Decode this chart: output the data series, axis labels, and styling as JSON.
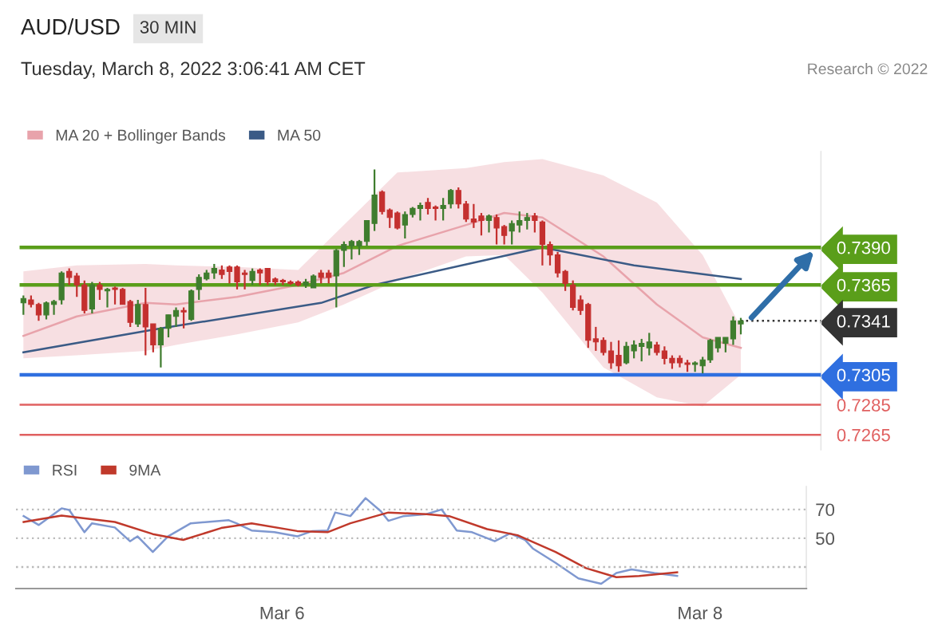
{
  "chart_data": [
    {
      "type": "candlestick",
      "title": "AUD/USD",
      "subtitle": "Tuesday, March 8, 2022 3:06:41 AM CET",
      "annotations": [
        "30 MIN",
        "Research © 2022"
      ],
      "categories": [
        null,
        null,
        null,
        null,
        null,
        null,
        null,
        null,
        null,
        null,
        null,
        null,
        null,
        null,
        null,
        null,
        null,
        null,
        null,
        null,
        null,
        null,
        null,
        null,
        null,
        null,
        null,
        null,
        null,
        null,
        null,
        null,
        null,
        null,
        null,
        null,
        null,
        null,
        null,
        null,
        null,
        null,
        null,
        null,
        null,
        null,
        null,
        null,
        null,
        null,
        null,
        null,
        null,
        null,
        null,
        null,
        null,
        null,
        null,
        null,
        null,
        null,
        null,
        null,
        null,
        null,
        null,
        null,
        null,
        null,
        null,
        null,
        null,
        null,
        null,
        null,
        null,
        null,
        null,
        null,
        null,
        null,
        null,
        null,
        null,
        null,
        null,
        null,
        null,
        null,
        null,
        null,
        null,
        null,
        null,
        null,
        null,
        null,
        null,
        null,
        null,
        null,
        null,
        null,
        null
      ],
      "ohlc": [
        [
          0.7353,
          0.7358,
          0.7345,
          0.7356
        ],
        [
          0.7355,
          0.7358,
          0.735,
          0.7352
        ],
        [
          0.7352,
          0.7353,
          0.7341,
          0.7345
        ],
        [
          0.7345,
          0.7354,
          0.7342,
          0.7353
        ],
        [
          0.7352,
          0.7355,
          0.7345,
          0.7354
        ],
        [
          0.7355,
          0.7374,
          0.7352,
          0.7373
        ],
        [
          0.7374,
          0.7376,
          0.7365,
          0.737
        ],
        [
          0.7371,
          0.7373,
          0.7357,
          0.7365
        ],
        [
          0.7365,
          0.7368,
          0.7346,
          0.7348
        ],
        [
          0.7349,
          0.7367,
          0.7346,
          0.7365
        ],
        [
          0.7365,
          0.7367,
          0.7355,
          0.7362
        ],
        [
          0.7361,
          0.7363,
          0.735,
          0.7362
        ],
        [
          0.7363,
          0.7364,
          0.7352,
          0.7362
        ],
        [
          0.7362,
          0.7363,
          0.7352,
          0.7352
        ],
        [
          0.7354,
          0.7355,
          0.7337,
          0.734
        ],
        [
          0.7339,
          0.7355,
          0.7337,
          0.7352
        ],
        [
          0.7352,
          0.7363,
          0.7318,
          0.7337
        ],
        [
          0.7339,
          0.7339,
          0.732,
          0.7325
        ],
        [
          0.7325,
          0.7337,
          0.731,
          0.7336
        ],
        [
          0.7336,
          0.7345,
          0.733,
          0.7345
        ],
        [
          0.7344,
          0.735,
          0.7337,
          0.7348
        ],
        [
          0.7348,
          0.735,
          0.7336,
          0.7347
        ],
        [
          0.7342,
          0.7362,
          0.7341,
          0.7361
        ],
        [
          0.7362,
          0.7372,
          0.7355,
          0.737
        ],
        [
          0.7369,
          0.7375,
          0.7368,
          0.7373
        ],
        [
          0.7373,
          0.7379,
          0.7369,
          0.7376
        ],
        [
          0.7375,
          0.7378,
          0.7369,
          0.7372
        ],
        [
          0.7377,
          0.7378,
          0.7366,
          0.7374
        ],
        [
          0.7377,
          0.7378,
          0.7362,
          0.7367
        ],
        [
          0.7373,
          0.7375,
          0.7362,
          0.7372
        ],
        [
          0.7368,
          0.7376,
          0.7365,
          0.7374
        ],
        [
          0.7375,
          0.7376,
          0.7365,
          0.7373
        ],
        [
          0.7376,
          0.7376,
          0.7365,
          0.7367
        ],
        [
          0.7369,
          0.737,
          0.7365,
          0.7367
        ],
        [
          0.7368,
          0.7369,
          0.7365,
          0.7367
        ],
        [
          0.7367,
          0.7368,
          0.7365,
          0.7366
        ],
        [
          0.7367,
          0.7368,
          0.7364,
          0.7365
        ],
        [
          0.7365,
          0.7369,
          0.7363,
          0.7367
        ],
        [
          0.7363,
          0.7372,
          0.7363,
          0.7371
        ],
        [
          0.7373,
          0.7375,
          0.7366,
          0.737
        ],
        [
          0.7373,
          0.7375,
          0.7366,
          0.737
        ],
        [
          0.7371,
          0.7389,
          0.735,
          0.7388
        ],
        [
          0.7388,
          0.7394,
          0.7377,
          0.7392
        ],
        [
          0.7391,
          0.7395,
          0.7382,
          0.7394
        ],
        [
          0.7391,
          0.7395,
          0.7385,
          0.7394
        ],
        [
          0.7394,
          0.7408,
          0.7391,
          0.7408
        ],
        [
          0.7406,
          0.7442,
          0.7401,
          0.7425
        ],
        [
          0.7427,
          0.7428,
          0.7412,
          0.7414
        ],
        [
          0.7415,
          0.7416,
          0.7403,
          0.741
        ],
        [
          0.7413,
          0.7414,
          0.7402,
          0.7403
        ],
        [
          0.7405,
          0.7414,
          0.7396,
          0.7412
        ],
        [
          0.7412,
          0.7417,
          0.741,
          0.7416
        ],
        [
          0.7416,
          0.742,
          0.7408,
          0.7418
        ],
        [
          0.742,
          0.7423,
          0.7412,
          0.7416
        ],
        [
          0.7417,
          0.7418,
          0.7408,
          0.7416
        ],
        [
          0.7416,
          0.7423,
          0.7408,
          0.7418
        ],
        [
          0.7419,
          0.7429,
          0.7416,
          0.7428
        ],
        [
          0.7428,
          0.743,
          0.7416,
          0.7419
        ],
        [
          0.7419,
          0.7421,
          0.7407,
          0.7409
        ],
        [
          0.7409,
          0.7419,
          0.7403,
          0.7407
        ],
        [
          0.7411,
          0.7413,
          0.7398,
          0.7408
        ],
        [
          0.7408,
          0.7412,
          0.74,
          0.7411
        ],
        [
          0.741,
          0.7412,
          0.7392,
          0.7403
        ],
        [
          0.7404,
          0.7405,
          0.7392,
          0.7398
        ],
        [
          0.7401,
          0.7408,
          0.7392,
          0.7406
        ],
        [
          0.7405,
          0.7414,
          0.74,
          0.7408
        ],
        [
          0.7408,
          0.7413,
          0.7402,
          0.741
        ],
        [
          0.7411,
          0.7413,
          0.74,
          0.7408
        ],
        [
          0.7407,
          0.7408,
          0.7378,
          0.7392
        ],
        [
          0.7392,
          0.7394,
          0.7378,
          0.7385
        ],
        [
          0.7385,
          0.7387,
          0.737,
          0.7373
        ],
        [
          0.7374,
          0.7375,
          0.7361,
          0.7366
        ],
        [
          0.7365,
          0.7368,
          0.7348,
          0.735
        ],
        [
          0.7355,
          0.7358,
          0.7345,
          0.7348
        ],
        [
          0.7352,
          0.7353,
          0.7323,
          0.7328
        ],
        [
          0.7329,
          0.7337,
          0.7321,
          0.7327
        ],
        [
          0.7328,
          0.733,
          0.7318,
          0.732
        ],
        [
          0.7321,
          0.7327,
          0.7309,
          0.7313
        ],
        [
          0.7318,
          0.7328,
          0.7307,
          0.7311
        ],
        [
          0.7313,
          0.7327,
          0.7312,
          0.7324
        ],
        [
          0.7321,
          0.7328,
          0.7316,
          0.7325
        ],
        [
          0.7324,
          0.7329,
          0.7314,
          0.7326
        ],
        [
          0.7323,
          0.7333,
          0.7318,
          0.7327
        ],
        [
          0.7325,
          0.7327,
          0.7318,
          0.732
        ],
        [
          0.7321,
          0.7324,
          0.7312,
          0.7316
        ],
        [
          0.7316,
          0.7318,
          0.7309,
          0.7313
        ],
        [
          0.7316,
          0.7318,
          0.731,
          0.7313
        ],
        [
          0.7313,
          0.7315,
          0.7307,
          0.7312
        ],
        [
          0.7312,
          0.7314,
          0.7307,
          0.7313
        ],
        [
          0.7311,
          0.7317,
          0.7306,
          0.7315
        ],
        [
          0.7315,
          0.7329,
          0.7313,
          0.7328
        ],
        [
          0.7323,
          0.733,
          0.732,
          0.733
        ],
        [
          0.7326,
          0.733,
          0.732,
          0.733
        ],
        [
          0.7329,
          0.7344,
          0.7325,
          0.7341
        ],
        [
          0.7339,
          0.7343,
          0.7332,
          0.7341
        ],
        null,
        null,
        null,
        null,
        null,
        null,
        null,
        null,
        null,
        null
      ],
      "colors": [
        "#3f7d2e",
        "#c4302f",
        "#c4302f",
        "#3f7d2e",
        "#3f7d2e",
        "#3f7d2e",
        "#c4302f",
        "#c4302f",
        "#c4302f",
        "#3f7d2e",
        "#c4302f",
        "#3f7d2e",
        "#c4302f",
        "#c4302f",
        "#c4302f",
        "#3f7d2e",
        "#c4302f",
        "#c4302f",
        "#3f7d2e",
        "#3f7d2e",
        "#3f7d2e",
        "#c4302f",
        "#3f7d2e",
        "#3f7d2e",
        "#3f7d2e",
        "#3f7d2e",
        "#c4302f",
        "#c4302f",
        "#c4302f",
        "#c4302f",
        "#3f7d2e",
        "#c4302f",
        "#c4302f",
        "#c4302f",
        "#c4302f",
        "#c4302f",
        "#c4302f",
        "#3f7d2e",
        "#3f7d2e",
        "#c4302f",
        "#c4302f",
        "#3f7d2e",
        "#3f7d2e",
        "#3f7d2e",
        "#3f7d2e",
        "#3f7d2e",
        "#3f7d2e",
        "#c4302f",
        "#c4302f",
        "#c4302f",
        "#3f7d2e",
        "#3f7d2e",
        "#3f7d2e",
        "#c4302f",
        "#c4302f",
        "#3f7d2e",
        "#3f7d2e",
        "#c4302f",
        "#c4302f",
        "#c4302f",
        "#c4302f",
        "#3f7d2e",
        "#c4302f",
        "#c4302f",
        "#3f7d2e",
        "#3f7d2e",
        "#3f7d2e",
        "#c4302f",
        "#c4302f",
        "#c4302f",
        "#c4302f",
        "#c4302f",
        "#c4302f",
        "#c4302f",
        "#c4302f",
        "#c4302f",
        "#c4302f",
        "#c4302f",
        "#c4302f",
        "#3f7d2e",
        "#3f7d2e",
        "#3f7d2e",
        "#3f7d2e",
        "#c4302f",
        "#c4302f",
        "#c4302f",
        "#c4302f",
        "#c4302f",
        "#3f7d2e",
        "#3f7d2e",
        "#3f7d2e",
        "#3f7d2e",
        "#3f7d2e",
        "#3f7d2e",
        "#3f7d2e",
        null,
        null,
        null,
        null,
        null,
        null,
        null,
        null,
        null,
        null
      ],
      "series": [
        {
          "name": "MA 20 + Bollinger Bands",
          "type": "line",
          "color": "#e8a3ab",
          "values": [
            0.7331,
            null,
            null,
            null,
            null,
            null,
            null,
            0.7344,
            null,
            null,
            null,
            null,
            null,
            null,
            null,
            null,
            0.7353,
            null,
            null,
            null,
            0.7352,
            null,
            null,
            null,
            null,
            null,
            null,
            null,
            0.7357,
            null,
            null,
            null,
            null,
            null,
            null,
            null,
            0.7365,
            null,
            null,
            null,
            null,
            null,
            0.7373,
            null,
            null,
            null,
            null,
            null,
            null,
            0.7391,
            null,
            null,
            null,
            null,
            null,
            null,
            null,
            null,
            0.7405,
            null,
            null,
            null,
            null,
            0.7413,
            null,
            null,
            null,
            null,
            0.741,
            null,
            null,
            null,
            null,
            null,
            null,
            null,
            0.7384,
            null,
            null,
            null,
            null,
            null,
            null,
            0.7352,
            null,
            null,
            null,
            null,
            null,
            0.733,
            null,
            null,
            null,
            null,
            0.7323,
            null,
            null,
            null,
            null,
            null,
            null,
            null,
            null,
            null,
            null
          ],
          "lower": [
            0.7316,
            null,
            null,
            null,
            null,
            null,
            null,
            0.7318,
            null,
            null,
            null,
            null,
            null,
            null,
            null,
            null,
            0.7321,
            null,
            null,
            null,
            0.7325,
            null,
            null,
            null,
            null,
            null,
            null,
            null,
            0.7332,
            null,
            null,
            null,
            null,
            null,
            null,
            null,
            0.734,
            null,
            null,
            null,
            null,
            null,
            0.7352,
            null,
            null,
            null,
            null,
            null,
            null,
            0.7368,
            null,
            null,
            null,
            null,
            null,
            null,
            null,
            null,
            0.7384,
            null,
            null,
            null,
            null,
            0.7385,
            null,
            null,
            null,
            null,
            0.736,
            null,
            null,
            null,
            null,
            null,
            null,
            null,
            0.731,
            null,
            null,
            null,
            null,
            null,
            null,
            0.729,
            null,
            null,
            null,
            null,
            null,
            0.7284,
            null,
            null,
            null,
            null,
            0.7305,
            null,
            null,
            null,
            null,
            null,
            null,
            null,
            null,
            null,
            null
          ],
          "upper": [
            0.7374,
            null,
            null,
            null,
            null,
            null,
            null,
            0.7378,
            null,
            null,
            null,
            null,
            null,
            null,
            null,
            null,
            0.7379,
            null,
            null,
            null,
            0.7378,
            null,
            null,
            null,
            null,
            null,
            null,
            null,
            0.7377,
            null,
            null,
            null,
            null,
            null,
            null,
            null,
            0.7375,
            null,
            null,
            null,
            null,
            null,
            0.7405,
            null,
            null,
            null,
            null,
            null,
            null,
            0.744,
            null,
            null,
            null,
            null,
            null,
            null,
            null,
            null,
            0.7443,
            null,
            null,
            null,
            null,
            0.7447,
            null,
            null,
            null,
            null,
            0.7449,
            null,
            null,
            null,
            null,
            null,
            null,
            null,
            0.7438,
            null,
            null,
            null,
            null,
            null,
            null,
            0.742,
            null,
            null,
            null,
            null,
            null,
            0.7385,
            null,
            null,
            null,
            null,
            0.7337,
            null,
            null,
            null,
            null,
            null,
            null,
            null,
            null,
            null,
            null
          ]
        },
        {
          "name": "MA 50",
          "type": "line",
          "color": "#3b5b86",
          "values": [
            0.732,
            null,
            null,
            null,
            null,
            null,
            null,
            null,
            null,
            null,
            null,
            null,
            null,
            null,
            null,
            null,
            null,
            null,
            0.7336,
            null,
            null,
            null,
            null,
            null,
            null,
            null,
            null,
            null,
            null,
            null,
            null,
            null,
            null,
            null,
            null,
            null,
            null,
            null,
            null,
            0.7353,
            null,
            null,
            null,
            null,
            null,
            null,
            0.7365,
            null,
            null,
            null,
            null,
            null,
            null,
            null,
            null,
            null,
            null,
            null,
            null,
            null,
            0.7381,
            null,
            null,
            null,
            null,
            null,
            null,
            null,
            0.739,
            null,
            null,
            null,
            null,
            null,
            null,
            null,
            null,
            null,
            null,
            null,
            0.7378,
            null,
            null,
            null,
            null,
            null,
            null,
            null,
            null,
            null,
            null,
            null,
            null,
            null,
            0.7369,
            null,
            null,
            null,
            null,
            null,
            null,
            null,
            null,
            null,
            null
          ]
        }
      ],
      "ref_lines": [
        {
          "axis": "y",
          "value": 0.739,
          "color": "#5a9e1a",
          "line_style": "solid"
        },
        {
          "axis": "y",
          "value": 0.7365,
          "color": "#5a9e1a",
          "line_style": "solid"
        },
        {
          "axis": "y",
          "value": 0.7341,
          "color": "#333333",
          "line_style": "dotted"
        },
        {
          "axis": "y",
          "value": 0.7305,
          "color": "#2f6fe0",
          "line_style": "solid"
        },
        {
          "axis": "y",
          "value": 0.7285,
          "color": "#e06060",
          "line_style": "solid"
        },
        {
          "axis": "y",
          "value": 0.7265,
          "color": "#e06060",
          "line_style": "solid"
        }
      ],
      "yticks": [
        {
          "value": 0.739,
          "label": "0.7390"
        },
        {
          "value": 0.7365,
          "label": "0.7365"
        },
        {
          "value": 0.7341,
          "label": "0.7341"
        },
        {
          "value": 0.7305,
          "label": "0.7305"
        },
        {
          "value": 0.7285,
          "label": "0.7285"
        },
        {
          "value": 0.7265,
          "label": "0.7265"
        }
      ],
      "ylim": [
        0.7255,
        0.7454
      ],
      "tick_labels": "y",
      "legend": "top left",
      "grid": false
    },
    {
      "type": "line",
      "categories": [
        null,
        null,
        null,
        null,
        null,
        null,
        null,
        null,
        null,
        null,
        null,
        null,
        null,
        null,
        null,
        null,
        null,
        null,
        null,
        null,
        null,
        null,
        null,
        null,
        null,
        null,
        null,
        null,
        null,
        null,
        null,
        null,
        null,
        null,
        "Mar 6",
        null,
        null,
        null,
        null,
        null,
        null,
        null,
        null,
        null,
        null,
        null,
        null,
        null,
        null,
        null,
        null,
        null,
        null,
        null,
        null,
        null,
        null,
        null,
        null,
        null,
        null,
        null,
        null,
        null,
        null,
        null,
        null,
        null,
        null,
        null,
        null,
        null,
        null,
        null,
        null,
        null,
        null,
        null,
        null,
        null,
        null,
        null,
        null,
        null,
        null,
        null,
        null,
        null,
        null,
        "Mar 8",
        null,
        null,
        null,
        null,
        null
      ],
      "series": [
        {
          "name": "RSI",
          "color": "#7f98d0",
          "values": [
            65.4,
            null,
            59.2,
            null,
            null,
            70.8,
            69.6,
            null,
            54.2,
            60.4,
            null,
            null,
            57.5,
            null,
            47.9,
            51.3,
            null,
            40.4,
            null,
            51.3,
            null,
            null,
            60.4,
            null,
            null,
            null,
            null,
            62.5,
            60.4,
            null,
            55.4,
            null,
            null,
            54.2,
            null,
            null,
            51.3,
            null,
            55.0,
            null,
            55.4,
            67.9,
            null,
            65.4,
            null,
            77.9,
            null,
            68.8,
            62.1,
            null,
            65.4,
            null,
            null,
            66.7,
            null,
            70.0,
            null,
            55.4,
            null,
            54.2,
            null,
            null,
            47.9,
            null,
            53.3,
            null,
            48.8,
            42.9,
            null,
            null,
            32.9,
            null,
            null,
            22.1,
            null,
            19.6,
            18.3,
            null,
            25.8,
            null,
            28.3,
            null,
            null,
            25.8,
            null,
            null,
            23.8,
            null,
            null,
            null,
            null,
            null,
            null,
            null,
            null
          ]
        },
        {
          "name": "9MA",
          "color": "#c0392b",
          "values": [
            61.3,
            null,
            null,
            null,
            null,
            65.8,
            null,
            null,
            null,
            null,
            null,
            null,
            61.3,
            null,
            null,
            null,
            null,
            52.9,
            null,
            null,
            null,
            48.8,
            null,
            null,
            null,
            null,
            57.1,
            null,
            null,
            null,
            60.4,
            null,
            null,
            null,
            null,
            null,
            55.0,
            null,
            null,
            null,
            54.2,
            null,
            null,
            60.4,
            null,
            null,
            null,
            null,
            67.9,
            null,
            null,
            null,
            null,
            66.7,
            null,
            null,
            65.4,
            null,
            null,
            null,
            null,
            56.3,
            null,
            null,
            null,
            52.1,
            null,
            null,
            null,
            null,
            40.4,
            null,
            null,
            null,
            29.2,
            null,
            null,
            null,
            22.9,
            null,
            null,
            23.8,
            null,
            null,
            null,
            null,
            26.3,
            null,
            null,
            null,
            null,
            null,
            null,
            null,
            null
          ]
        }
      ],
      "ref_lines": [
        {
          "axis": "y",
          "value": 30,
          "label": null,
          "color": "#bbbbbb",
          "line_style": "dotted"
        }
      ],
      "ylim": [
        15,
        86
      ],
      "yticks": [
        70,
        50
      ],
      "grid": "y",
      "legend": "top left"
    }
  ]
}
